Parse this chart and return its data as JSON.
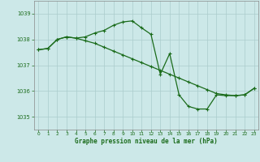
{
  "title": "Graphe pression niveau de la mer (hPa)",
  "background_color": "#cce8e8",
  "grid_color": "#aacccc",
  "line_color": "#1a6b1a",
  "xlim": [
    -0.5,
    23.5
  ],
  "ylim": [
    1034.5,
    1039.5
  ],
  "yticks": [
    1035,
    1036,
    1037,
    1038,
    1039
  ],
  "xticks": [
    0,
    1,
    2,
    3,
    4,
    5,
    6,
    7,
    8,
    9,
    10,
    11,
    12,
    13,
    14,
    15,
    16,
    17,
    18,
    19,
    20,
    21,
    22,
    23
  ],
  "series1_x": [
    0,
    1,
    2,
    3,
    4,
    5,
    6,
    7,
    8,
    9,
    10,
    11,
    12,
    13,
    14,
    15,
    16,
    17,
    18,
    19,
    20,
    21,
    22,
    23
  ],
  "series1_y": [
    1037.6,
    1037.65,
    1038.0,
    1038.1,
    1038.05,
    1037.95,
    1037.85,
    1037.7,
    1037.55,
    1037.4,
    1037.25,
    1037.1,
    1036.95,
    1036.8,
    1036.65,
    1036.5,
    1036.35,
    1036.2,
    1036.05,
    1035.9,
    1035.85,
    1035.82,
    1035.85,
    1036.1
  ],
  "series2_x": [
    0,
    1,
    2,
    3,
    4,
    5,
    6,
    7,
    8,
    9,
    10,
    11,
    12,
    13,
    14,
    15,
    16,
    17,
    18,
    19,
    20,
    21,
    22,
    23
  ],
  "series2_y": [
    1037.6,
    1037.65,
    1038.0,
    1038.1,
    1038.05,
    1038.1,
    1038.25,
    1038.35,
    1038.55,
    1038.68,
    1038.72,
    1038.45,
    1038.2,
    1036.65,
    1037.45,
    1035.85,
    1035.4,
    1035.3,
    1035.3,
    1035.85,
    1035.82,
    1035.82,
    1035.85,
    1036.1
  ]
}
